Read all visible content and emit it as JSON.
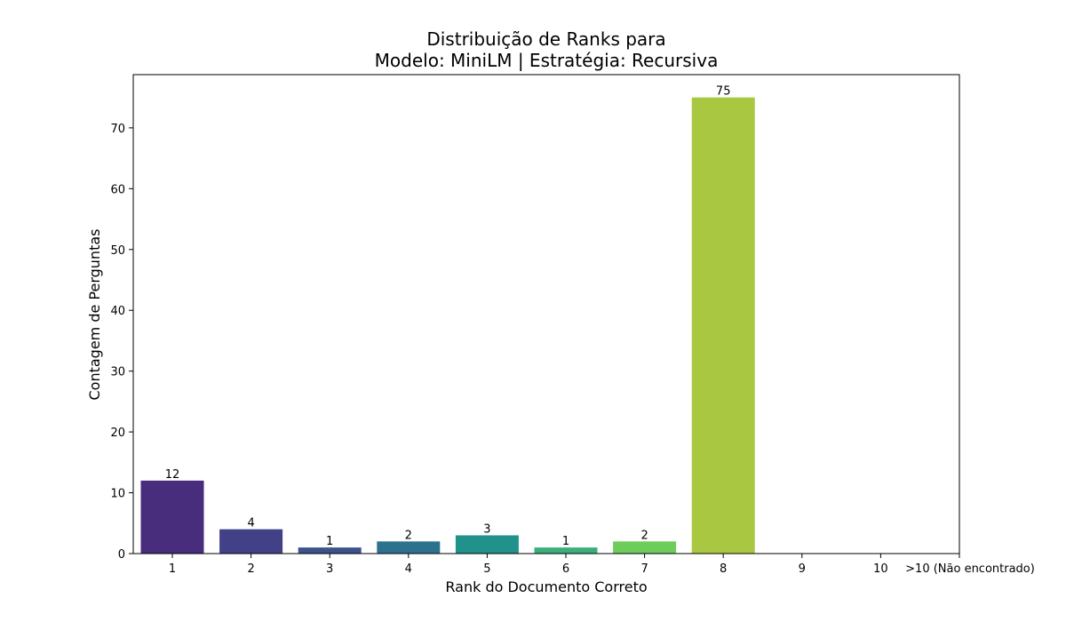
{
  "chart_data": {
    "type": "bar",
    "title": "Distribuição de Ranks para",
    "subtitle": "Modelo: MiniLM | Estratégia: Recursiva",
    "xlabel": "Rank do Documento Correto",
    "ylabel": "Contagem de Perguntas",
    "categories": [
      "1",
      "2",
      "3",
      "4",
      "5",
      "6",
      "7",
      "8",
      "9",
      "10",
      ">10 (Não encontrado)"
    ],
    "values": [
      12,
      4,
      1,
      2,
      3,
      1,
      2,
      75,
      0,
      0,
      0
    ],
    "data_labels": [
      "12",
      "4",
      "1",
      "2",
      "3",
      "1",
      "2",
      "75",
      "",
      "",
      ""
    ],
    "colors": [
      "#472d7b",
      "#424086",
      "#3b528b",
      "#2c728e",
      "#21918c",
      "#3aaf7a",
      "#6ccd5a",
      "#a9c740",
      "#fde725",
      "#fde725",
      "#fde725"
    ],
    "ylim": [
      0,
      78.75
    ],
    "yticks": [
      0,
      10,
      20,
      30,
      40,
      50,
      60,
      70
    ],
    "grid": false,
    "legend": "none"
  }
}
